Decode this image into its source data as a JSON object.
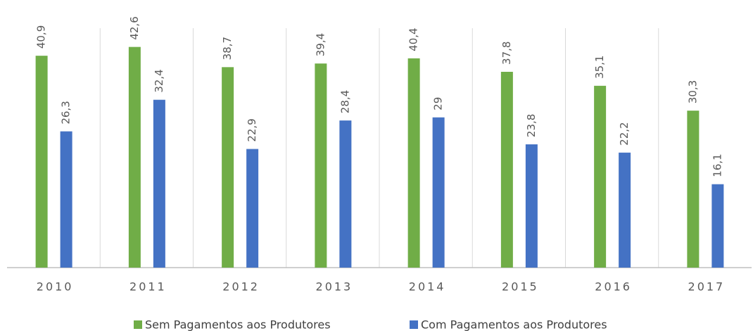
{
  "chart_data": {
    "type": "bar",
    "categories": [
      "2010",
      "2011",
      "2012",
      "2013",
      "2014",
      "2015",
      "2016",
      "2017"
    ],
    "series": [
      {
        "name": "Sem Pagamentos aos Produtores",
        "color": "#70ad47",
        "values": [
          40.9,
          42.6,
          38.7,
          39.4,
          40.4,
          37.8,
          35.1,
          30.3
        ],
        "value_labels": [
          "40,9",
          "42,6",
          "38,7",
          "39,4",
          "40,4",
          "37,8",
          "35,1",
          "30,3"
        ]
      },
      {
        "name": "Com Pagamentos aos Produtores",
        "color": "#4472c4",
        "values": [
          26.3,
          32.4,
          22.9,
          28.4,
          29,
          23.8,
          22.2,
          16.1
        ],
        "value_labels": [
          "26,3",
          "32,4",
          "22,9",
          "28,4",
          "29",
          "23,8",
          "22,2",
          "16,1"
        ]
      }
    ],
    "ylim": [
      0,
      45
    ],
    "legend": "bottom"
  }
}
